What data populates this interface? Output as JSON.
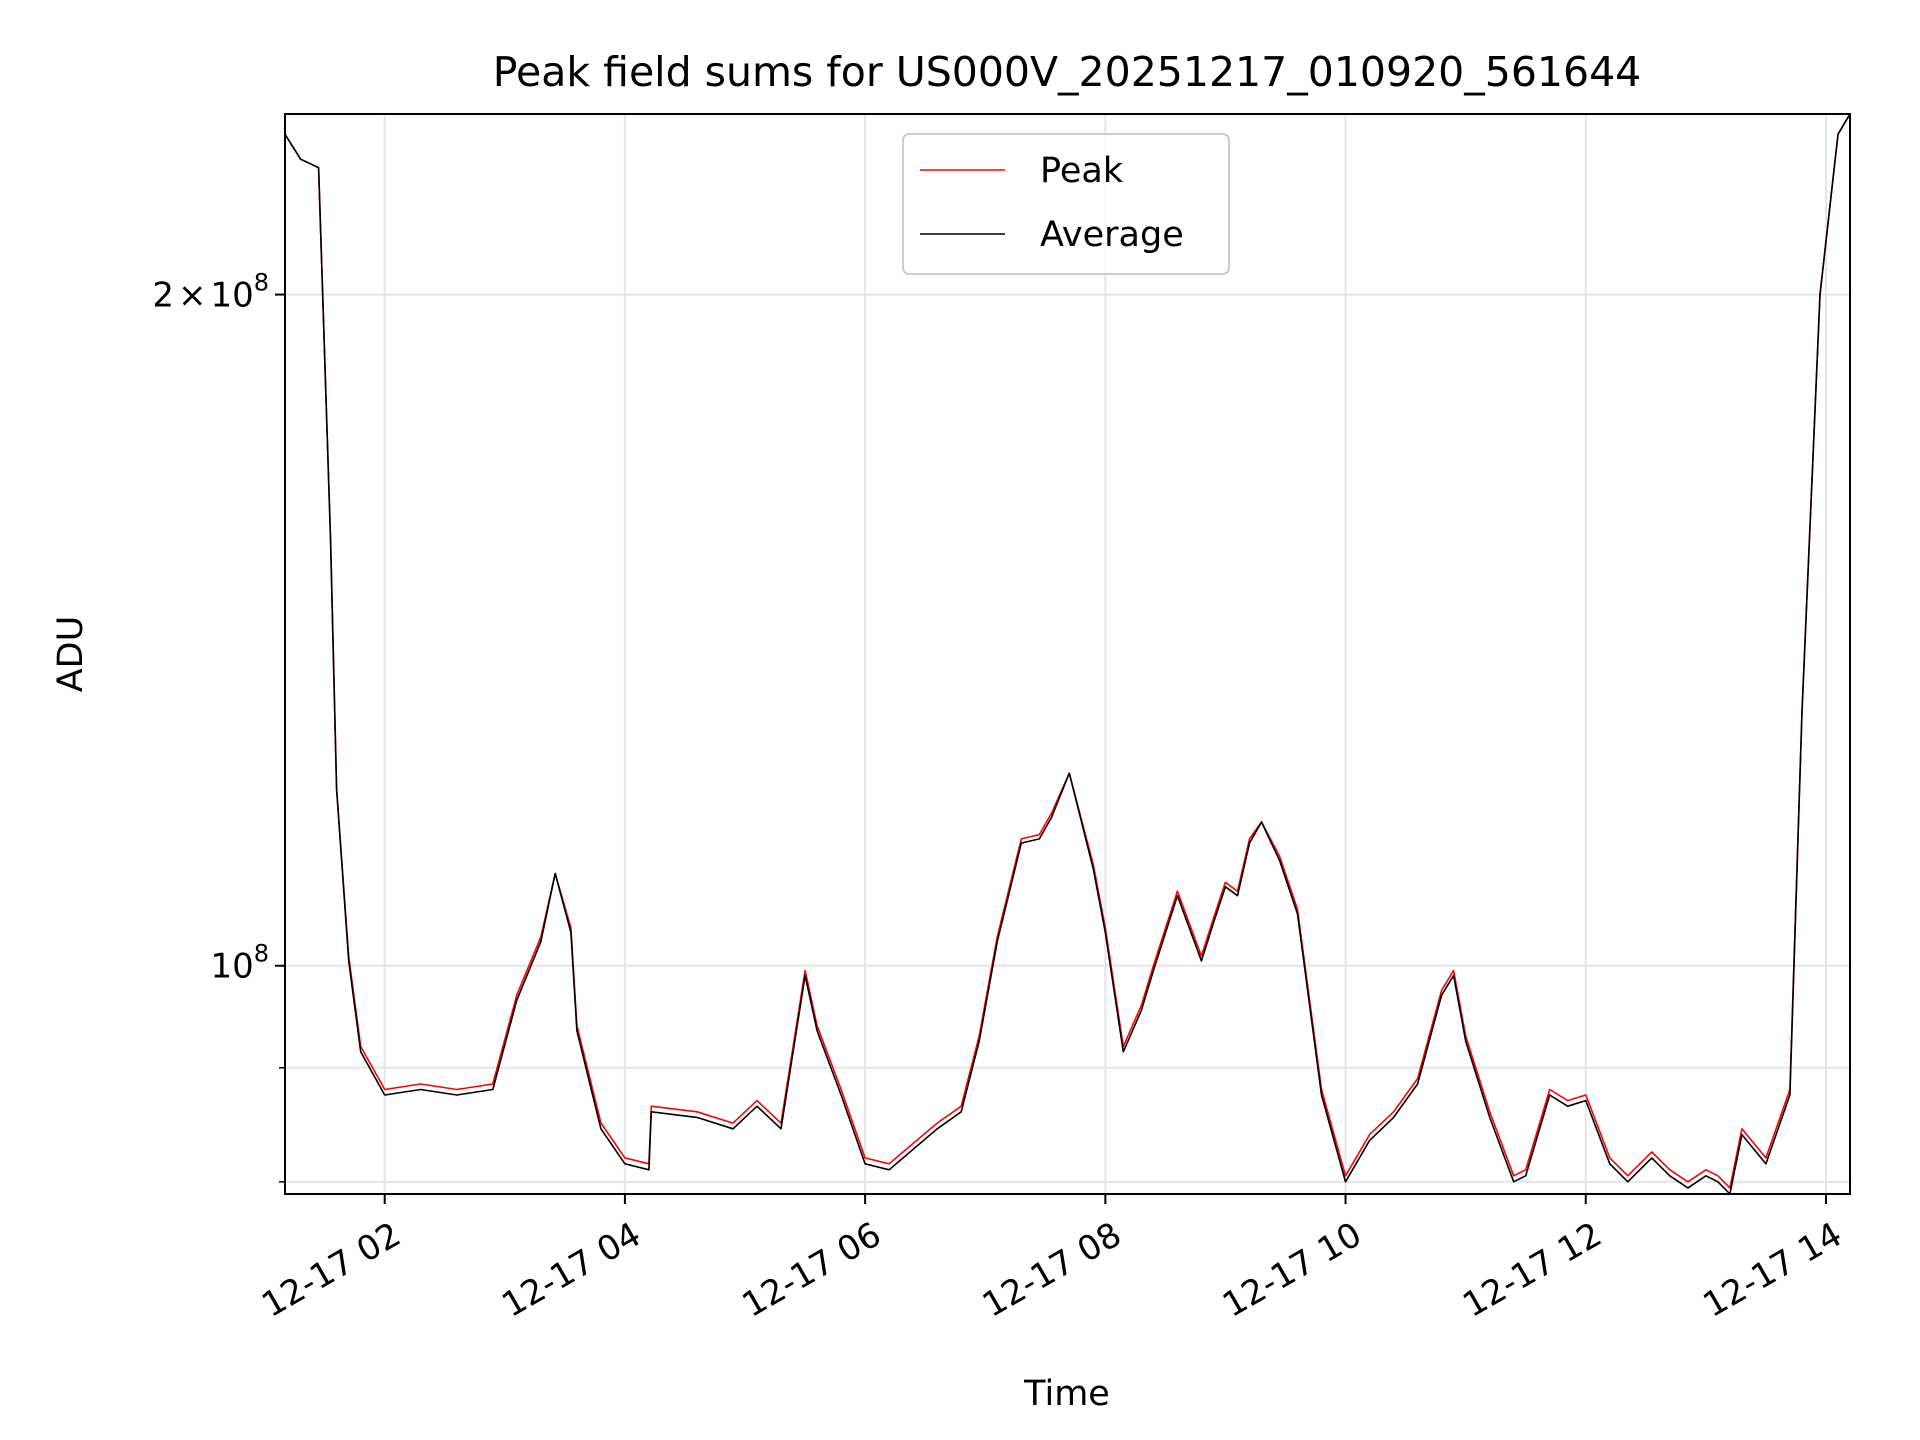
{
  "chart_data": {
    "type": "line",
    "title": "Peak field sums for US000V_20251217_010920_561644",
    "xlabel": "Time",
    "ylabel": "ADU",
    "yscale": "log",
    "grid": true,
    "legend_position": "top-center",
    "x_unit": "hours since 2025-12-17 00:00",
    "xlim": [
      1.17,
      14.2
    ],
    "ylim": [
      79000000,
      241000000
    ],
    "x_ticks": [
      {
        "value": 2,
        "label": "12-17 02"
      },
      {
        "value": 4,
        "label": "12-17 04"
      },
      {
        "value": 6,
        "label": "12-17 06"
      },
      {
        "value": 8,
        "label": "12-17 08"
      },
      {
        "value": 10,
        "label": "12-17 10"
      },
      {
        "value": 12,
        "label": "12-17 12"
      },
      {
        "value": 14,
        "label": "12-17 14"
      }
    ],
    "y_major_ticks": [
      {
        "value": 100000000,
        "base": "10",
        "exp": "8"
      },
      {
        "value": 200000000,
        "mant": "2",
        "base": "10",
        "exp": "8"
      }
    ],
    "y_minor_ticks": [
      80000000,
      90000000
    ],
    "x": [
      1.17,
      1.3,
      1.45,
      1.55,
      1.6,
      1.7,
      1.8,
      2.0,
      2.3,
      2.6,
      2.9,
      3.1,
      3.3,
      3.42,
      3.55,
      3.6,
      3.8,
      4.0,
      4.2,
      4.22,
      4.6,
      4.9,
      5.1,
      5.3,
      5.5,
      5.6,
      5.8,
      6.0,
      6.2,
      6.6,
      6.8,
      6.95,
      7.1,
      7.3,
      7.45,
      7.55,
      7.7,
      7.9,
      8.0,
      8.15,
      8.3,
      8.4,
      8.6,
      8.8,
      8.9,
      9.0,
      9.1,
      9.2,
      9.3,
      9.45,
      9.6,
      9.8,
      10.0,
      10.2,
      10.4,
      10.6,
      10.8,
      10.9,
      11.0,
      11.2,
      11.4,
      11.5,
      11.7,
      11.85,
      12.0,
      12.2,
      12.35,
      12.55,
      12.7,
      12.85,
      13.0,
      13.1,
      13.2,
      13.3,
      13.5,
      13.7,
      13.8,
      13.95,
      14.1,
      14.2
    ],
    "series": [
      {
        "name": "Peak",
        "color": "#ff0000",
        "values": [
          236000000,
          230000000,
          228000000,
          155000000,
          120000000,
          101000000,
          92000000,
          88000000,
          88500000,
          88000000,
          88500000,
          97000000,
          103000000,
          110000000,
          104000000,
          94000000,
          85000000,
          82000000,
          81500000,
          86500000,
          86000000,
          85000000,
          87000000,
          85000000,
          99500000,
          94000000,
          88000000,
          82000000,
          81500000,
          85000000,
          86500000,
          93000000,
          103000000,
          114000000,
          114500000,
          117000000,
          122000000,
          111000000,
          104000000,
          92000000,
          96000000,
          100000000,
          108000000,
          101000000,
          105000000,
          109000000,
          108000000,
          114000000,
          116000000,
          112000000,
          106000000,
          88000000,
          80500000,
          84000000,
          86000000,
          89000000,
          97500000,
          99500000,
          93000000,
          86000000,
          80500000,
          81000000,
          88000000,
          87000000,
          87500000,
          82000000,
          80500000,
          82500000,
          81000000,
          80000000,
          81000000,
          80500000,
          79500000,
          84500000,
          82000000,
          88000000,
          130000000,
          200000000,
          236000000,
          241000000
        ]
      },
      {
        "name": "Average",
        "color": "#000000",
        "values": [
          236000000,
          230000000,
          228000000,
          155000000,
          120000000,
          100500000,
          91500000,
          87500000,
          88000000,
          87500000,
          88000000,
          96500000,
          102500000,
          110000000,
          103500000,
          93500000,
          84500000,
          81500000,
          81000000,
          86000000,
          85500000,
          84500000,
          86500000,
          84500000,
          99000000,
          93500000,
          87500000,
          81500000,
          81000000,
          84500000,
          86000000,
          92500000,
          102500000,
          113500000,
          114000000,
          116500000,
          122000000,
          110500000,
          103500000,
          91500000,
          95500000,
          99500000,
          107500000,
          100500000,
          104500000,
          108500000,
          107500000,
          113500000,
          116000000,
          111500000,
          105500000,
          87500000,
          80000000,
          83500000,
          85500000,
          88500000,
          97000000,
          99000000,
          92500000,
          85500000,
          80000000,
          80500000,
          87500000,
          86500000,
          87000000,
          81500000,
          80000000,
          82000000,
          80500000,
          79500000,
          80500000,
          80000000,
          79000000,
          84000000,
          81500000,
          87500000,
          130000000,
          200000000,
          236000000,
          241000000
        ]
      }
    ]
  }
}
